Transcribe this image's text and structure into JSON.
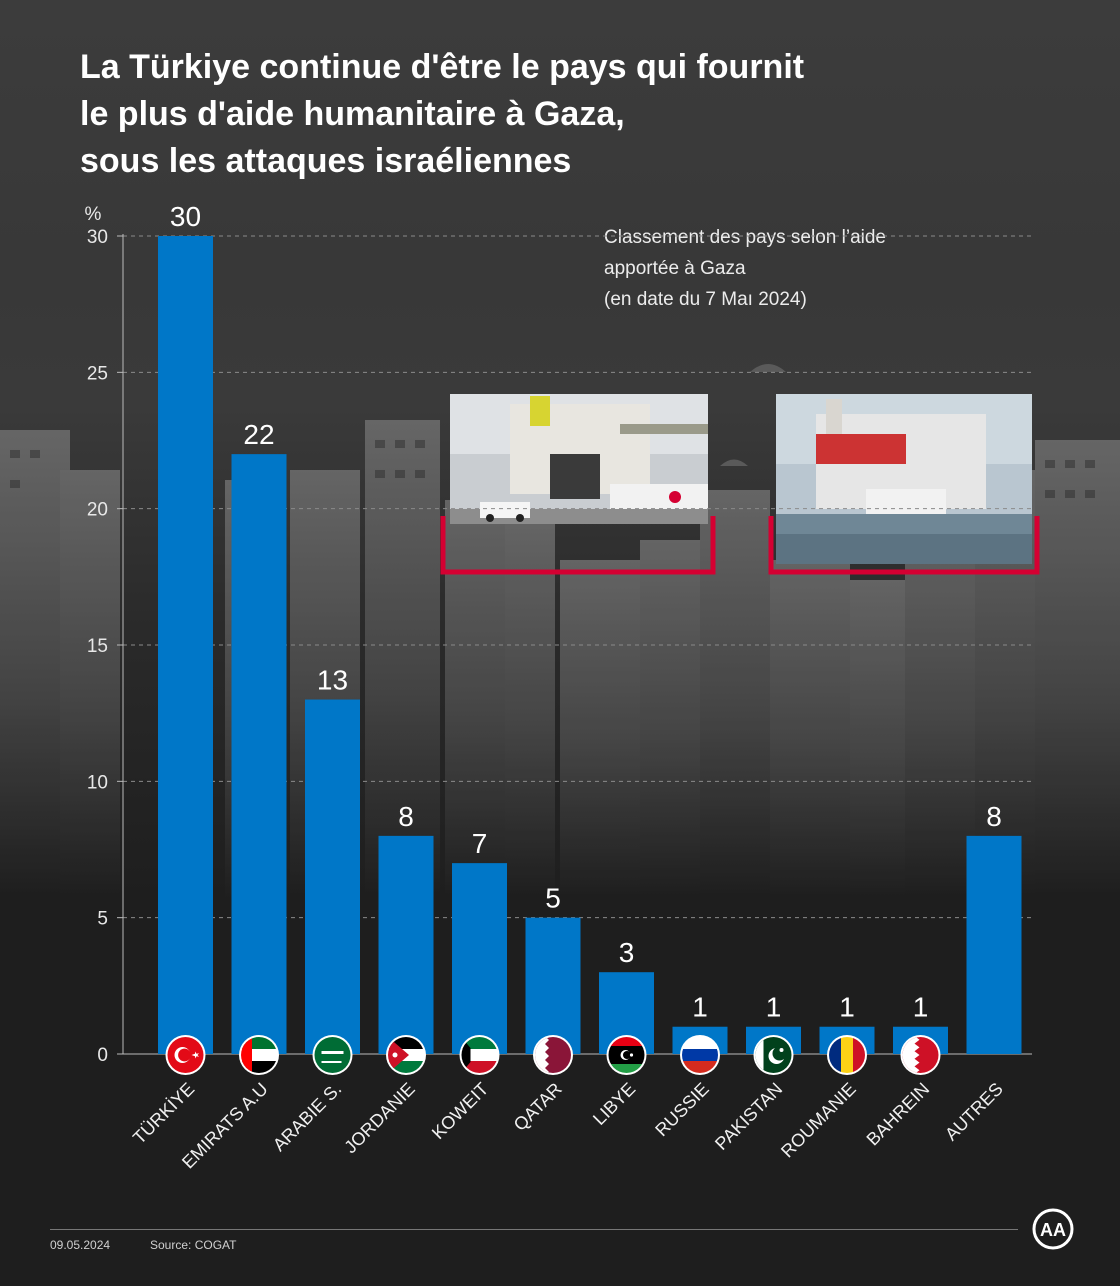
{
  "title": "La Türkiye continue d'être le pays qui fournit\nle plus d'aide humanitaire à Gaza,\nsous les attaques israéliennes",
  "subtitle": "Classement des pays selon l’aide\napportée à Gaza\n(en date du 7 Maı 2024)",
  "footer": {
    "date": "09.05.2024",
    "source": "Source: COGAT"
  },
  "logo": {
    "icon": "aa-logo-icon",
    "text": "AA"
  },
  "colors": {
    "bar": "#0077c8",
    "accent": "#d50032",
    "background": "#1e1e1e"
  },
  "chart_data": {
    "type": "bar",
    "ylabel": "%",
    "ylim": [
      0,
      30
    ],
    "yticks": [
      0,
      5,
      10,
      15,
      20,
      25,
      30
    ],
    "grid": true,
    "categories": [
      "TÜRKİYE",
      "EMIRATS A.U",
      "ARABIE S.",
      "JORDANIE",
      "KOWEIT",
      "QATAR",
      "LIBYE",
      "RUSSIE",
      "PAKISTAN",
      "ROUMANIE",
      "BAHREIN",
      "AUTRES"
    ],
    "values": [
      30,
      22,
      13,
      8,
      7,
      5,
      3,
      1,
      1,
      1,
      1,
      8
    ],
    "flags": [
      "turkey-flag-icon",
      "uae-flag-icon",
      "saudi-flag-icon",
      "jordan-flag-icon",
      "kuwait-flag-icon",
      "qatar-flag-icon",
      "libya-flag-icon",
      "russia-flag-icon",
      "pakistan-flag-icon",
      "romania-flag-icon",
      "bahrain-flag-icon",
      ""
    ]
  }
}
